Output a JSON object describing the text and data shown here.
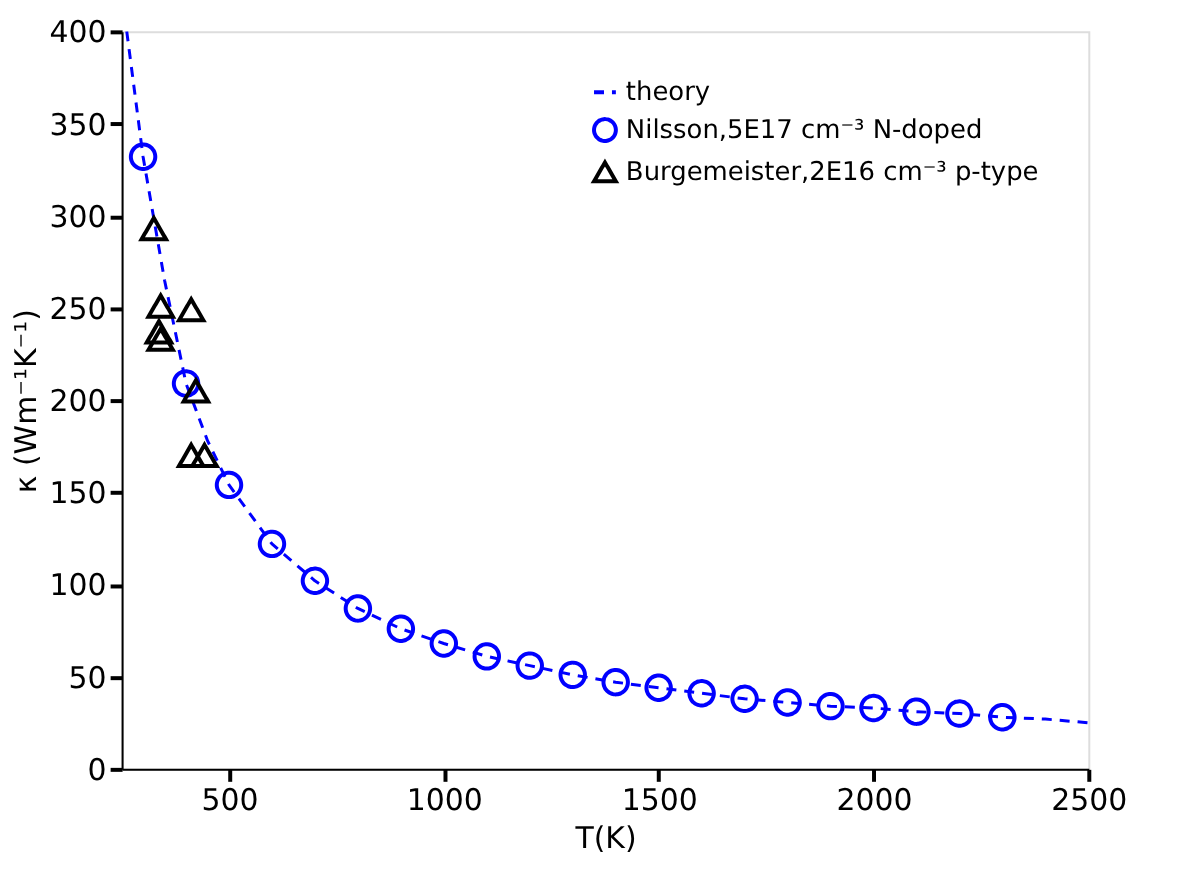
{
  "chart_data": {
    "type": "scatter",
    "xlabel": "T(K)",
    "ylabel": "κ (Wm⁻¹K⁻¹)",
    "xlim": [
      250,
      2500
    ],
    "xticks": [
      500,
      1000,
      1500,
      2000,
      2500
    ],
    "ylim": [
      0,
      400
    ],
    "yticks": [
      0,
      50,
      100,
      150,
      200,
      250,
      300,
      350,
      400
    ],
    "grid": false,
    "legend": "top right",
    "series": [
      {
        "name": "theory",
        "type": "line",
        "line_style": "dashed",
        "marker": "none",
        "color": "#0000ff",
        "x": [
          262,
          300,
          350,
          400,
          450,
          500,
          600,
          700,
          800,
          900,
          1000,
          1100,
          1200,
          1300,
          1400,
          1500,
          1600,
          1700,
          1800,
          1900,
          2000,
          2100,
          2200,
          2300,
          2400,
          2500
        ],
        "values": [
          400,
          332,
          265,
          209,
          178,
          154,
          122,
          102,
          87,
          76,
          68,
          61,
          56,
          51,
          47,
          44,
          41,
          38,
          36,
          34,
          33,
          31,
          30,
          28,
          27,
          25
        ]
      },
      {
        "name": "Nilsson,5E17 cm⁻³ N-doped",
        "marker": "circle",
        "color": "#0000ff",
        "x": [
          300,
          400,
          500,
          600,
          700,
          800,
          900,
          1000,
          1100,
          1200,
          1300,
          1400,
          1500,
          1600,
          1700,
          1800,
          1900,
          2000,
          2100,
          2200,
          2300
        ],
        "values": [
          332,
          209,
          154,
          122,
          102,
          87,
          76,
          68,
          61,
          56,
          51,
          47,
          44,
          41,
          38,
          36,
          34,
          33,
          31,
          30,
          28
        ]
      },
      {
        "name": "Burgemeister,2E16 cm⁻³ p-type",
        "marker": "triangle",
        "color": "#000000",
        "x": [
          325,
          341,
          337,
          341,
          412,
          423,
          412,
          443
        ],
        "values": [
          293,
          251,
          237,
          233,
          249,
          205,
          170,
          170
        ]
      }
    ]
  }
}
